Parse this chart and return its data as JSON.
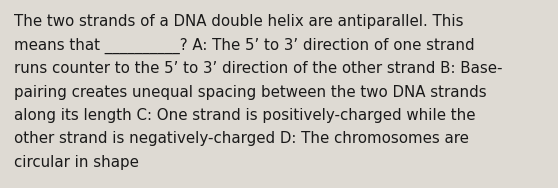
{
  "background_color": "#dedad3",
  "text_color": "#1a1a1a",
  "font_size": 10.8,
  "lines": [
    "The two strands of a DNA double helix are antiparallel. This",
    "means that __________? A: The 5’ to 3’ direction of one strand",
    "runs counter to the 5’ to 3’ direction of the other strand B: Base-",
    "pairing creates unequal spacing between the two DNA strands",
    "along its length C: One strand is positively-charged while the",
    "other strand is negatively-charged D: The chromosomes are",
    "circular in shape"
  ],
  "fig_width": 5.58,
  "fig_height": 1.88,
  "dpi": 100
}
